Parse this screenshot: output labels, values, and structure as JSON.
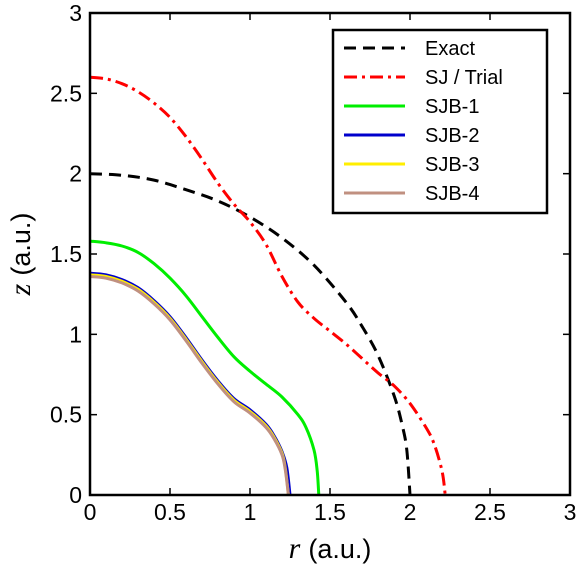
{
  "chart_data": {
    "type": "line",
    "xlabel": {
      "var": "r",
      "unit": "(a.u.)"
    },
    "ylabel": {
      "var": "z",
      "unit": "(a.u.)"
    },
    "xlim": [
      0,
      3
    ],
    "ylim": [
      0,
      3
    ],
    "xticks": [
      0,
      0.5,
      1,
      1.5,
      2,
      2.5,
      3
    ],
    "xtick_labels": [
      "0",
      "0.5",
      "1",
      "1.5",
      "2",
      "2.5",
      "3"
    ],
    "yticks": [
      0,
      0.5,
      1,
      1.5,
      2,
      2.5,
      3
    ],
    "ytick_labels": [
      "0",
      "0.5",
      "1",
      "1.5",
      "2",
      "2.5",
      "3"
    ],
    "grid": false,
    "legend_position": "top-right",
    "series": [
      {
        "name": "Exact",
        "color": "#000000",
        "dash": "dashed",
        "points": [
          [
            0,
            2.0
          ],
          [
            0.2,
            1.99
          ],
          [
            0.4,
            1.96
          ],
          [
            0.6,
            1.9
          ],
          [
            0.8,
            1.83
          ],
          [
            1.0,
            1.73
          ],
          [
            1.2,
            1.6
          ],
          [
            1.4,
            1.43
          ],
          [
            1.6,
            1.2
          ],
          [
            1.7,
            1.05
          ],
          [
            1.8,
            0.87
          ],
          [
            1.9,
            0.62
          ],
          [
            1.95,
            0.44
          ],
          [
            1.98,
            0.28
          ],
          [
            2.0,
            0.0
          ]
        ]
      },
      {
        "name": "SJ / Trial",
        "color": "#ff0000",
        "dash": "dashdot",
        "points": [
          [
            0,
            2.6
          ],
          [
            0.1,
            2.59
          ],
          [
            0.2,
            2.56
          ],
          [
            0.3,
            2.51
          ],
          [
            0.4,
            2.44
          ],
          [
            0.5,
            2.35
          ],
          [
            0.6,
            2.23
          ],
          [
            0.7,
            2.09
          ],
          [
            0.8,
            1.94
          ],
          [
            0.9,
            1.81
          ],
          [
            1.0,
            1.7
          ],
          [
            1.1,
            1.56
          ],
          [
            1.2,
            1.36
          ],
          [
            1.3,
            1.2
          ],
          [
            1.4,
            1.1
          ],
          [
            1.5,
            1.02
          ],
          [
            1.6,
            0.94
          ],
          [
            1.7,
            0.85
          ],
          [
            1.8,
            0.76
          ],
          [
            1.9,
            0.68
          ],
          [
            2.0,
            0.57
          ],
          [
            2.1,
            0.42
          ],
          [
            2.15,
            0.32
          ],
          [
            2.2,
            0.15
          ],
          [
            2.22,
            0.0
          ]
        ]
      },
      {
        "name": "SJB-1",
        "color": "#00ee00",
        "dash": "solid",
        "points": [
          [
            0,
            1.58
          ],
          [
            0.1,
            1.57
          ],
          [
            0.2,
            1.55
          ],
          [
            0.3,
            1.51
          ],
          [
            0.4,
            1.44
          ],
          [
            0.5,
            1.35
          ],
          [
            0.6,
            1.24
          ],
          [
            0.7,
            1.11
          ],
          [
            0.8,
            0.98
          ],
          [
            0.9,
            0.86
          ],
          [
            1.0,
            0.77
          ],
          [
            1.1,
            0.69
          ],
          [
            1.2,
            0.61
          ],
          [
            1.3,
            0.5
          ],
          [
            1.35,
            0.42
          ],
          [
            1.4,
            0.28
          ],
          [
            1.42,
            0.15
          ],
          [
            1.43,
            0.0
          ]
        ]
      },
      {
        "name": "SJB-2",
        "color": "#0000cc",
        "dash": "solid",
        "points": [
          [
            0,
            1.38
          ],
          [
            0.1,
            1.37
          ],
          [
            0.2,
            1.34
          ],
          [
            0.3,
            1.29
          ],
          [
            0.4,
            1.21
          ],
          [
            0.5,
            1.11
          ],
          [
            0.6,
            0.98
          ],
          [
            0.7,
            0.84
          ],
          [
            0.8,
            0.71
          ],
          [
            0.9,
            0.6
          ],
          [
            1.0,
            0.53
          ],
          [
            1.1,
            0.44
          ],
          [
            1.15,
            0.37
          ],
          [
            1.2,
            0.27
          ],
          [
            1.23,
            0.17
          ],
          [
            1.25,
            0.0
          ]
        ]
      },
      {
        "name": "SJB-3",
        "color": "#ffee00",
        "dash": "solid",
        "points": [
          [
            0,
            1.37
          ],
          [
            0.1,
            1.36
          ],
          [
            0.2,
            1.33
          ],
          [
            0.3,
            1.28
          ],
          [
            0.4,
            1.2
          ],
          [
            0.5,
            1.1
          ],
          [
            0.6,
            0.97
          ],
          [
            0.7,
            0.83
          ],
          [
            0.8,
            0.7
          ],
          [
            0.9,
            0.59
          ],
          [
            1.0,
            0.52
          ],
          [
            1.1,
            0.43
          ],
          [
            1.15,
            0.36
          ],
          [
            1.2,
            0.26
          ],
          [
            1.22,
            0.17
          ],
          [
            1.24,
            0.0
          ]
        ]
      },
      {
        "name": "SJB-4",
        "color": "#c09080",
        "dash": "solid",
        "points": [
          [
            0,
            1.36
          ],
          [
            0.1,
            1.35
          ],
          [
            0.2,
            1.32
          ],
          [
            0.3,
            1.27
          ],
          [
            0.4,
            1.19
          ],
          [
            0.5,
            1.09
          ],
          [
            0.6,
            0.96
          ],
          [
            0.7,
            0.82
          ],
          [
            0.8,
            0.69
          ],
          [
            0.9,
            0.58
          ],
          [
            1.0,
            0.51
          ],
          [
            1.1,
            0.42
          ],
          [
            1.15,
            0.35
          ],
          [
            1.2,
            0.25
          ],
          [
            1.22,
            0.16
          ],
          [
            1.24,
            0.0
          ]
        ]
      }
    ]
  }
}
